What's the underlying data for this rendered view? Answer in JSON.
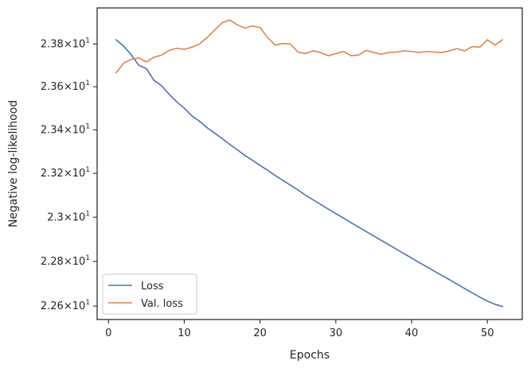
{
  "chart_data": {
    "type": "line",
    "title": "",
    "xlabel": "Epochs",
    "ylabel": "Negative log-likelihood",
    "y_scale": "log",
    "xlim": [
      -1.5,
      54.6
    ],
    "ylim": [
      22.54,
      23.97
    ],
    "grid": false,
    "legend_position": "lower-left",
    "x_ticks": [
      0,
      10,
      20,
      30,
      40,
      50
    ],
    "x_tick_labels": [
      "0",
      "10",
      "20",
      "30",
      "40",
      "50"
    ],
    "y_ticks": [
      22.6,
      22.8,
      23.0,
      23.2,
      23.4,
      23.6,
      23.8
    ],
    "y_tick_labels": [
      {
        "mantissa": "2.26",
        "exponent": "1"
      },
      {
        "mantissa": "2.28",
        "exponent": "1"
      },
      {
        "mantissa": "2.3",
        "exponent": "1"
      },
      {
        "mantissa": "2.32",
        "exponent": "1"
      },
      {
        "mantissa": "2.34",
        "exponent": "1"
      },
      {
        "mantissa": "2.36",
        "exponent": "1"
      },
      {
        "mantissa": "2.38",
        "exponent": "1"
      }
    ],
    "x": [
      1,
      2,
      3,
      4,
      5,
      6,
      7,
      8,
      9,
      10,
      11,
      12,
      13,
      14,
      15,
      16,
      17,
      18,
      19,
      20,
      21,
      22,
      23,
      24,
      25,
      26,
      27,
      28,
      29,
      30,
      31,
      32,
      33,
      34,
      35,
      36,
      37,
      38,
      39,
      40,
      41,
      42,
      43,
      44,
      45,
      46,
      47,
      48,
      49,
      50,
      51,
      52
    ],
    "series": [
      {
        "name": "Loss",
        "color": "#4c72b0",
        "values": [
          23.82,
          23.79,
          23.75,
          23.7,
          23.685,
          23.63,
          23.605,
          23.565,
          23.53,
          23.5,
          23.465,
          23.44,
          23.41,
          23.385,
          23.36,
          23.333,
          23.308,
          23.282,
          23.26,
          23.236,
          23.214,
          23.19,
          23.168,
          23.146,
          23.124,
          23.1,
          23.079,
          23.058,
          23.037,
          23.016,
          22.996,
          22.975,
          22.955,
          22.935,
          22.915,
          22.895,
          22.875,
          22.855,
          22.835,
          22.815,
          22.795,
          22.776,
          22.756,
          22.737,
          22.718,
          22.698,
          22.678,
          22.659,
          22.64,
          22.622,
          22.608,
          22.598
        ]
      },
      {
        "name": "Val. loss",
        "color": "#dd8452",
        "values": [
          23.665,
          23.71,
          23.728,
          23.735,
          23.716,
          23.738,
          23.748,
          23.77,
          23.78,
          23.775,
          23.785,
          23.8,
          23.83,
          23.865,
          23.9,
          23.913,
          23.89,
          23.875,
          23.885,
          23.878,
          23.83,
          23.795,
          23.802,
          23.8,
          23.762,
          23.755,
          23.768,
          23.76,
          23.745,
          23.755,
          23.765,
          23.745,
          23.748,
          23.77,
          23.76,
          23.752,
          23.76,
          23.762,
          23.768,
          23.765,
          23.76,
          23.765,
          23.762,
          23.76,
          23.768,
          23.778,
          23.768,
          23.788,
          23.785,
          23.82,
          23.795,
          23.82
        ]
      }
    ]
  }
}
